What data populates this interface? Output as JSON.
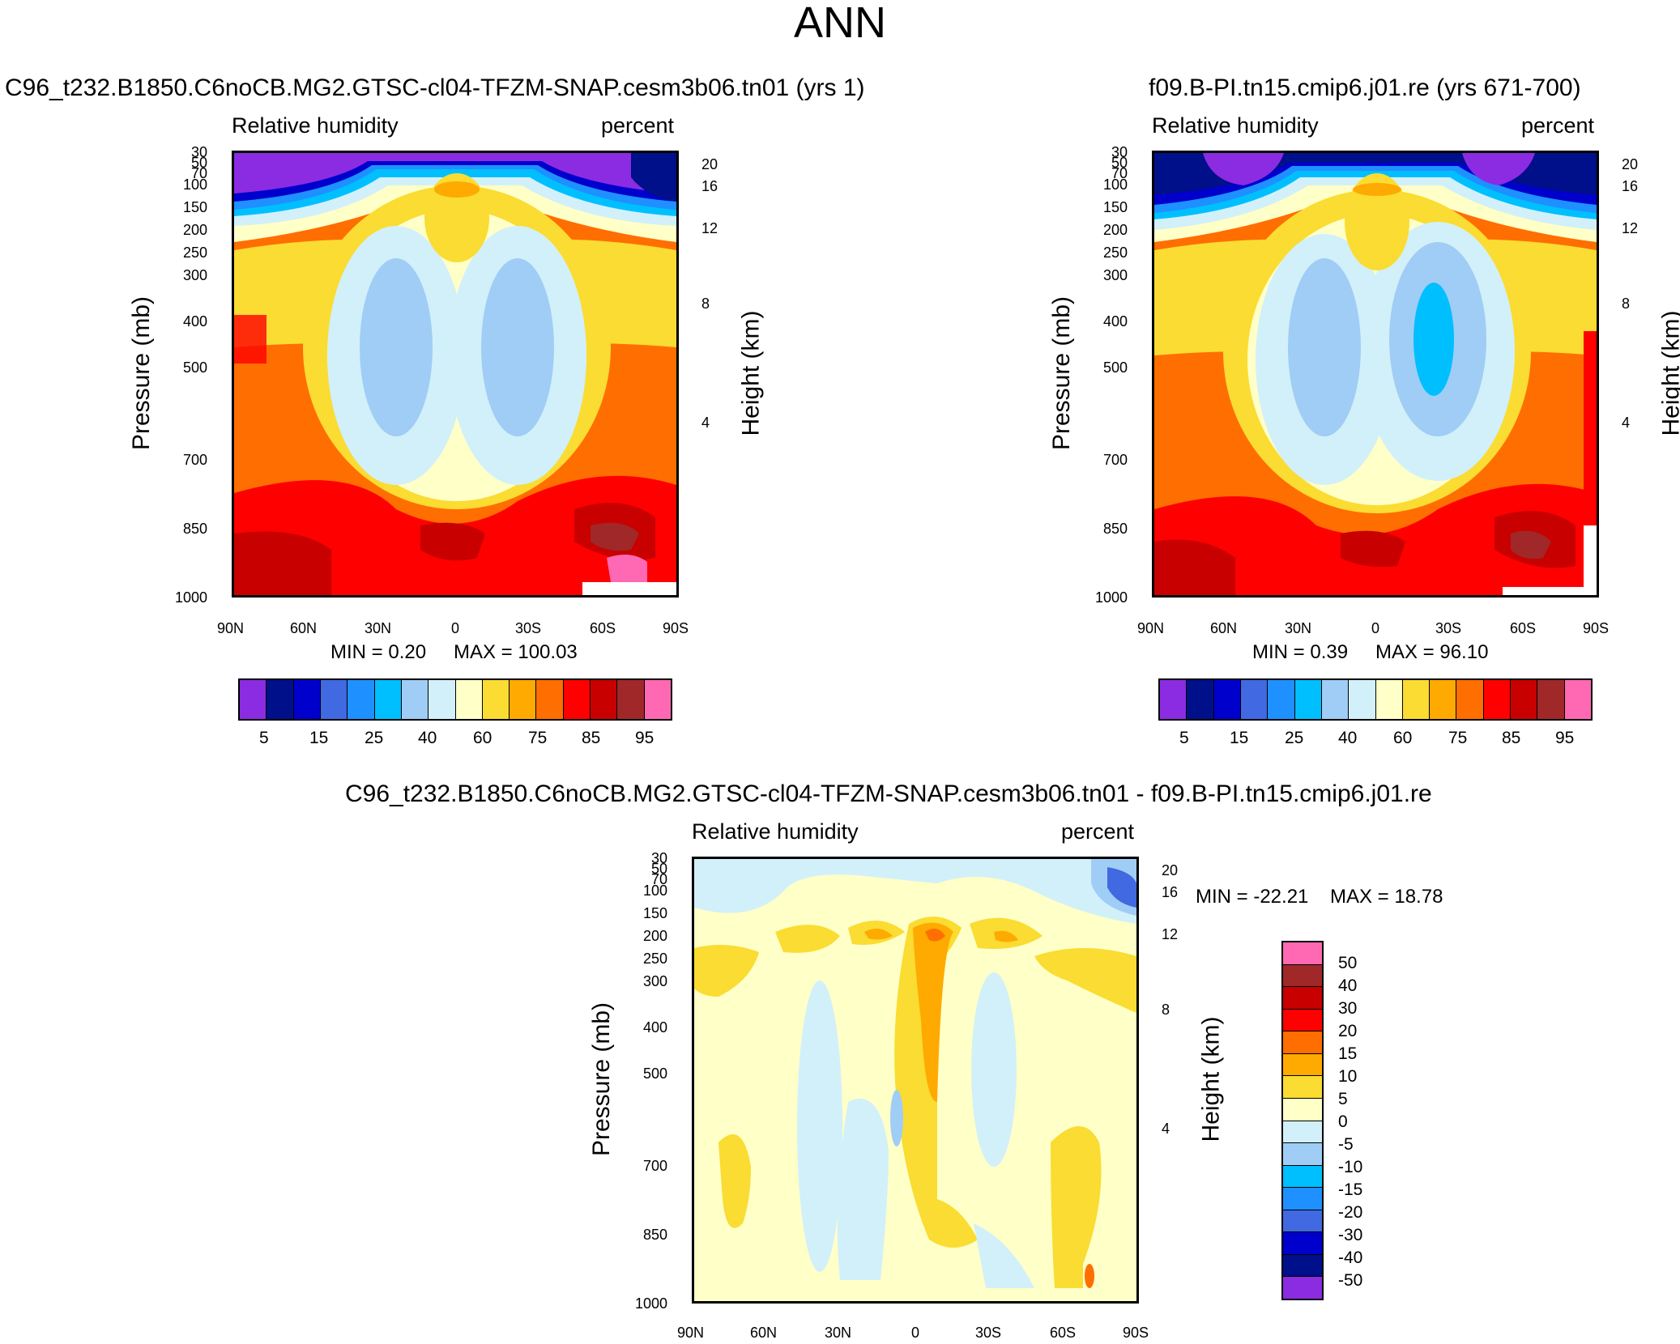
{
  "title": "ANN",
  "chart_data": [
    {
      "type": "heatmap",
      "title": "C96_t232.B1850.C6noCB.MG2.GTSC-cl04-TFZM-SNAP.cesm3b06.tn01 (yrs 1)",
      "left_label": "Relative humidity",
      "right_label": "percent",
      "ylabel": "Pressure (mb)",
      "y2label": "Height (km)",
      "xticks": [
        "90N",
        "60N",
        "30N",
        "0",
        "30S",
        "60S",
        "90S"
      ],
      "yticks": [
        "30",
        "50",
        "70",
        "100",
        "150",
        "200",
        "250",
        "300",
        "400",
        "500",
        "700",
        "850",
        "1000"
      ],
      "y2ticks": [
        "20",
        "16",
        "12",
        "8",
        "4"
      ],
      "min_text": "MIN =   0.20",
      "max_text": "MAX = 100.03",
      "colorbar_labels": [
        "5",
        "15",
        "25",
        "40",
        "60",
        "75",
        "85",
        "95"
      ],
      "colors": [
        "#8b2be2",
        "#000f8a",
        "#0000cd",
        "#4169e1",
        "#1e90ff",
        "#00bfff",
        "#a0cdf5",
        "#d2f0fa",
        "#ffffc8",
        "#fadc32",
        "#ffaa00",
        "#ff6e00",
        "#ff0000",
        "#c80000",
        "#a02828",
        "#ff69b4"
      ]
    },
    {
      "type": "heatmap",
      "title": "f09.B-PI.tn15.cmip6.j01.re (yrs 671-700)",
      "left_label": "Relative humidity",
      "right_label": "percent",
      "ylabel": "Pressure (mb)",
      "y2label": "Height (km)",
      "xticks": [
        "90N",
        "60N",
        "30N",
        "0",
        "30S",
        "60S",
        "90S"
      ],
      "yticks": [
        "30",
        "50",
        "70",
        "100",
        "150",
        "200",
        "250",
        "300",
        "400",
        "500",
        "700",
        "850",
        "1000"
      ],
      "y2ticks": [
        "20",
        "16",
        "12",
        "8",
        "4"
      ],
      "min_text": "MIN =   0.39",
      "max_text": "MAX =  96.10",
      "colorbar_labels": [
        "5",
        "15",
        "25",
        "40",
        "60",
        "75",
        "85",
        "95"
      ]
    },
    {
      "type": "heatmap",
      "title": "C96_t232.B1850.C6noCB.MG2.GTSC-cl04-TFZM-SNAP.cesm3b06.tn01 - f09.B-PI.tn15.cmip6.j01.re",
      "left_label": "Relative humidity",
      "right_label": "percent",
      "ylabel": "Pressure (mb)",
      "y2label": "Height (km)",
      "xticks": [
        "90N",
        "60N",
        "30N",
        "0",
        "30S",
        "60S",
        "90S"
      ],
      "yticks": [
        "30",
        "50",
        "70",
        "100",
        "150",
        "200",
        "250",
        "300",
        "400",
        "500",
        "700",
        "850",
        "1000"
      ],
      "y2ticks": [
        "20",
        "16",
        "12",
        "8",
        "4"
      ],
      "min_text": "MIN = -22.21",
      "max_text": "MAX =  18.78",
      "colorbar_labels": [
        "50",
        "40",
        "30",
        "20",
        "15",
        "10",
        "5",
        "0",
        "-5",
        "-10",
        "-15",
        "-20",
        "-30",
        "-40",
        "-50"
      ],
      "colors": [
        "#ff69b4",
        "#a02828",
        "#c80000",
        "#ff0000",
        "#ff6e00",
        "#ffaa00",
        "#fadc32",
        "#ffffc8",
        "#d2f0fa",
        "#a0cdf5",
        "#00bfff",
        "#1e90ff",
        "#4169e1",
        "#0000cd",
        "#000f8a",
        "#8b2be2"
      ]
    }
  ]
}
